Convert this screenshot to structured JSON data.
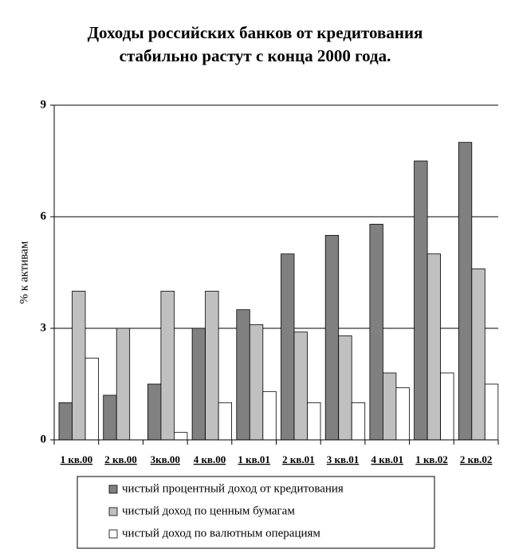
{
  "chart_data": {
    "type": "bar",
    "title": "Доходы российских банков от кредитования",
    "subtitle": "стабильно растут с конца 2000 года.",
    "y_label": "% к активам",
    "categories": [
      "1 кв.00",
      "2 кв.00",
      "3кв.00",
      "4 кв.00",
      "1 кв.01",
      "2 кв.01",
      "3 кв.01",
      "4 кв.01",
      "1 кв.02",
      "2 кв.02"
    ],
    "series": [
      {
        "name": "чистый процентный доход от кредитования",
        "color": "#808080",
        "values": [
          1.0,
          1.2,
          1.5,
          3.0,
          3.5,
          5.0,
          5.5,
          5.8,
          7.5,
          8.0
        ]
      },
      {
        "name": "чистый доход по ценным бумагам",
        "color": "#c0c0c0",
        "values": [
          4.0,
          3.0,
          4.0,
          4.0,
          3.1,
          2.9,
          2.8,
          1.8,
          5.0,
          4.6
        ]
      },
      {
        "name": "чистый доход по валютным операциям",
        "color": "#ffffff",
        "values": [
          2.2,
          0,
          0.2,
          1.0,
          1.3,
          1.0,
          1.0,
          1.4,
          1.8,
          1.5
        ]
      }
    ],
    "ylim": [
      0,
      9
    ],
    "yticks": [
      0,
      3,
      6,
      9
    ],
    "grid": true,
    "legend": "bottom"
  }
}
